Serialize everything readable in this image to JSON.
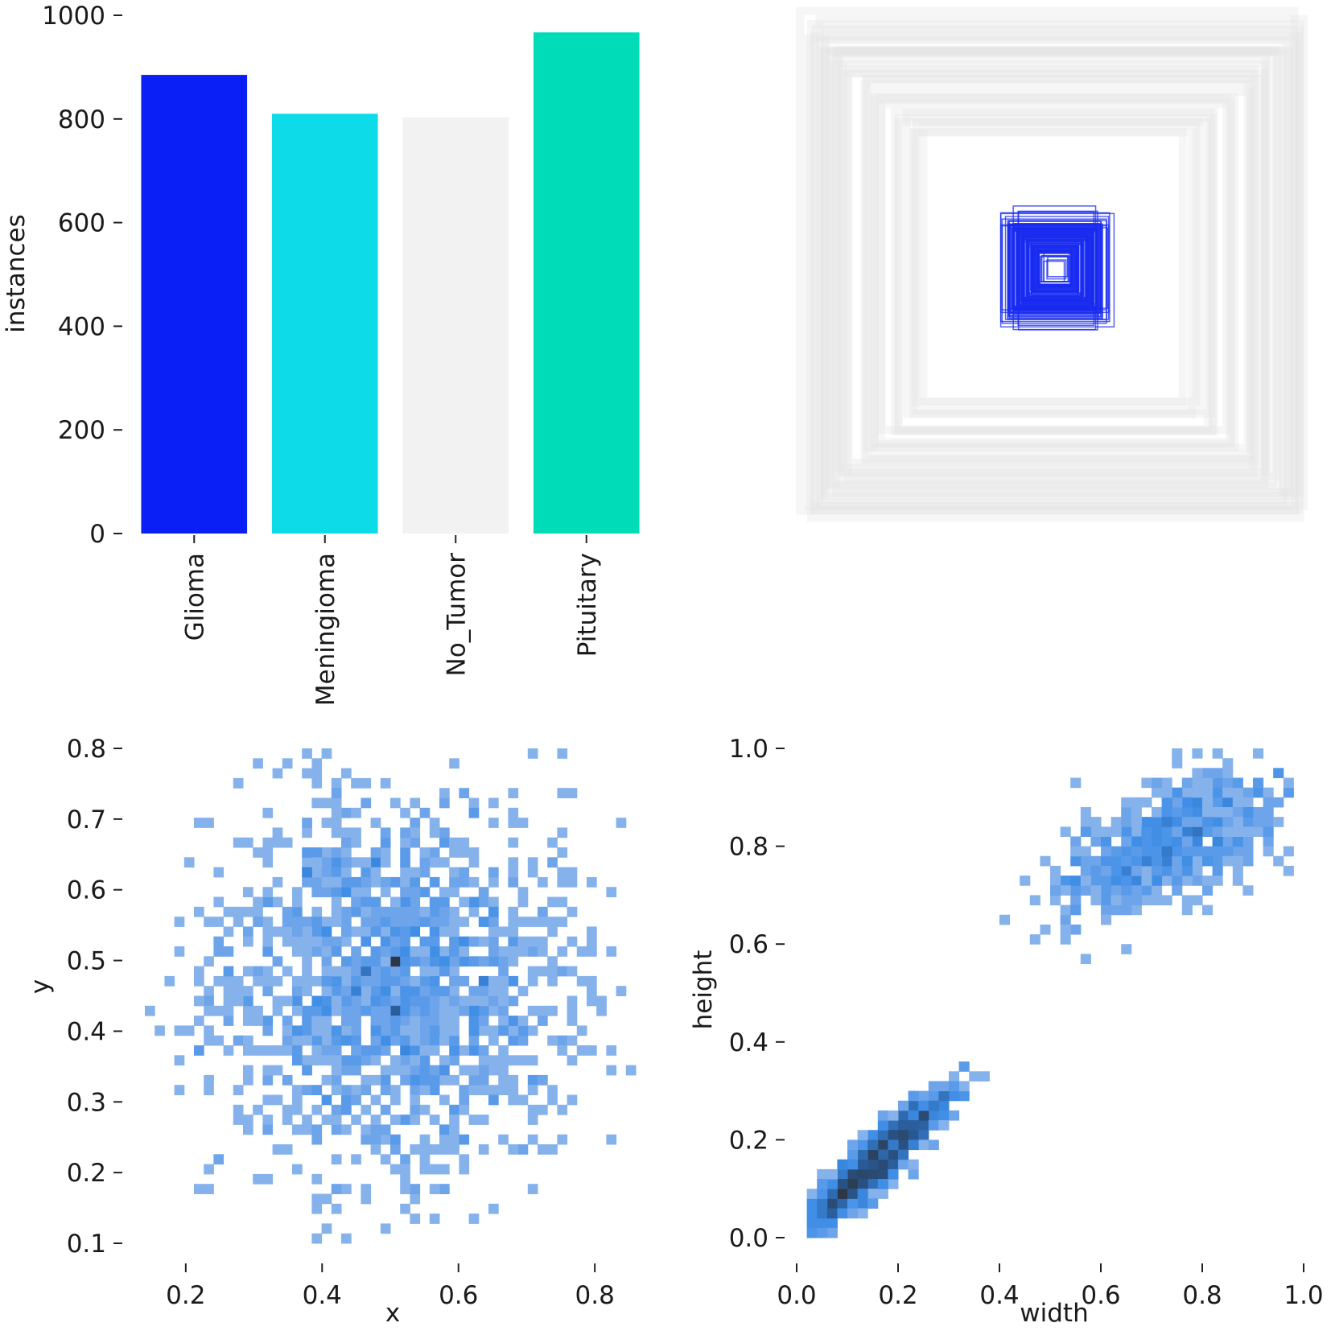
{
  "chart_data": [
    {
      "panel": "class-counts",
      "type": "bar",
      "categories": [
        "Glioma",
        "Meningioma",
        "No_Tumor",
        "Pituitary"
      ],
      "values": [
        885,
        810,
        803,
        967
      ],
      "colors": [
        "#0a1ff5",
        "#0ddbe8",
        "#f2f2f2",
        "#00dcb8"
      ],
      "ylabel": "instances",
      "xlabel": "",
      "ylim": [
        0,
        1000
      ],
      "yticks": [
        "0",
        "200",
        "400",
        "600",
        "800",
        "1000"
      ],
      "grid": false
    },
    {
      "panel": "box-outlines",
      "type": "scatter",
      "description_free": true,
      "box_colors": {
        "large": "#e6e6e6",
        "small": "#1a2cf0"
      },
      "large_boxes": [
        {
          "w": 0.96,
          "h": 0.97
        },
        {
          "w": 0.94,
          "h": 0.92
        },
        {
          "w": 0.9,
          "h": 0.88
        },
        {
          "w": 0.86,
          "h": 0.84
        },
        {
          "w": 0.82,
          "h": 0.8
        },
        {
          "w": 0.76,
          "h": 0.74
        },
        {
          "w": 0.7,
          "h": 0.68
        },
        {
          "w": 0.62,
          "h": 0.62
        },
        {
          "w": 0.55,
          "h": 0.56
        }
      ],
      "small_boxes": [
        {
          "w": 0.22,
          "h": 0.22
        },
        {
          "w": 0.2,
          "h": 0.2
        },
        {
          "w": 0.18,
          "h": 0.18
        },
        {
          "w": 0.16,
          "h": 0.16
        },
        {
          "w": 0.14,
          "h": 0.14
        },
        {
          "w": 0.12,
          "h": 0.12
        },
        {
          "w": 0.1,
          "h": 0.1
        },
        {
          "w": 0.08,
          "h": 0.08
        },
        {
          "w": 0.06,
          "h": 0.06
        },
        {
          "w": 0.04,
          "h": 0.04
        },
        {
          "w": 0.16,
          "h": 0.24
        },
        {
          "w": 0.21,
          "h": 0.17
        }
      ]
    },
    {
      "panel": "xy-histogram",
      "type": "heatmap",
      "xlabel": "x",
      "ylabel": "y",
      "xlim": [
        0.14,
        0.86
      ],
      "ylim": [
        0.1,
        0.8
      ],
      "xticks": [
        0.2,
        0.4,
        0.6,
        0.8
      ],
      "xtick_labels": [
        "0.2",
        "0.4",
        "0.6",
        "0.8"
      ],
      "yticks": [
        0.1,
        0.2,
        0.3,
        0.4,
        0.5,
        0.6,
        0.7,
        0.8
      ],
      "ytick_labels": [
        "0.1",
        "0.2",
        "0.3",
        "0.4",
        "0.5",
        "0.6",
        "0.7",
        "0.8"
      ],
      "bins": {
        "x": 50,
        "y": 50
      },
      "cells": [
        {
          "x": 0.5,
          "y": 0.5,
          "count": 40
        },
        {
          "x": 0.5,
          "y": 0.43,
          "count": 14
        },
        {
          "x": 0.47,
          "y": 0.48,
          "count": 9
        },
        {
          "x": 0.38,
          "y": 0.62,
          "count": 6
        },
        {
          "x": 0.44,
          "y": 0.6,
          "count": 5
        },
        {
          "x": 0.36,
          "y": 0.4,
          "count": 4
        },
        {
          "x": 0.62,
          "y": 0.58,
          "count": 4
        },
        {
          "x": 0.58,
          "y": 0.34,
          "count": 4
        },
        {
          "x": 0.4,
          "y": 0.3,
          "count": 4
        },
        {
          "x": 0.66,
          "y": 0.4,
          "count": 3
        }
      ],
      "cloud": {
        "center_x": 0.5,
        "center_y": 0.47,
        "spread_x": 0.13,
        "spread_y": 0.14
      }
    },
    {
      "panel": "wh-histogram",
      "type": "heatmap",
      "xlabel": "width",
      "ylabel": "height",
      "xlim": [
        0.0,
        1.0
      ],
      "ylim": [
        0.0,
        1.0
      ],
      "xticks": [
        0.0,
        0.2,
        0.4,
        0.6,
        0.8,
        1.0
      ],
      "xtick_labels": [
        "0.0",
        "0.2",
        "0.4",
        "0.6",
        "0.8",
        "1.0"
      ],
      "yticks": [
        0.0,
        0.2,
        0.4,
        0.6,
        0.8,
        1.0
      ],
      "ytick_labels": [
        "0.0",
        "0.2",
        "0.4",
        "0.6",
        "0.8",
        "1.0"
      ],
      "bins": {
        "x": 50,
        "y": 50
      },
      "cells": [
        {
          "x": 0.09,
          "y": 0.09,
          "count": 40
        },
        {
          "x": 0.11,
          "y": 0.11,
          "count": 34
        },
        {
          "x": 0.13,
          "y": 0.13,
          "count": 26
        },
        {
          "x": 0.07,
          "y": 0.07,
          "count": 22
        },
        {
          "x": 0.15,
          "y": 0.15,
          "count": 18
        },
        {
          "x": 0.17,
          "y": 0.17,
          "count": 12
        },
        {
          "x": 0.19,
          "y": 0.19,
          "count": 8
        },
        {
          "x": 0.05,
          "y": 0.05,
          "count": 8
        },
        {
          "x": 0.69,
          "y": 0.84,
          "count": 5
        },
        {
          "x": 0.81,
          "y": 0.84,
          "count": 4
        },
        {
          "x": 0.95,
          "y": 0.95,
          "count": 4
        }
      ],
      "clusters": [
        {
          "cx": 0.16,
          "cy": 0.16,
          "sx": 0.07,
          "sy": 0.07,
          "corr": 0.92
        },
        {
          "cx": 0.74,
          "cy": 0.81,
          "sx": 0.12,
          "sy": 0.08,
          "corr": 0.6
        }
      ]
    }
  ]
}
